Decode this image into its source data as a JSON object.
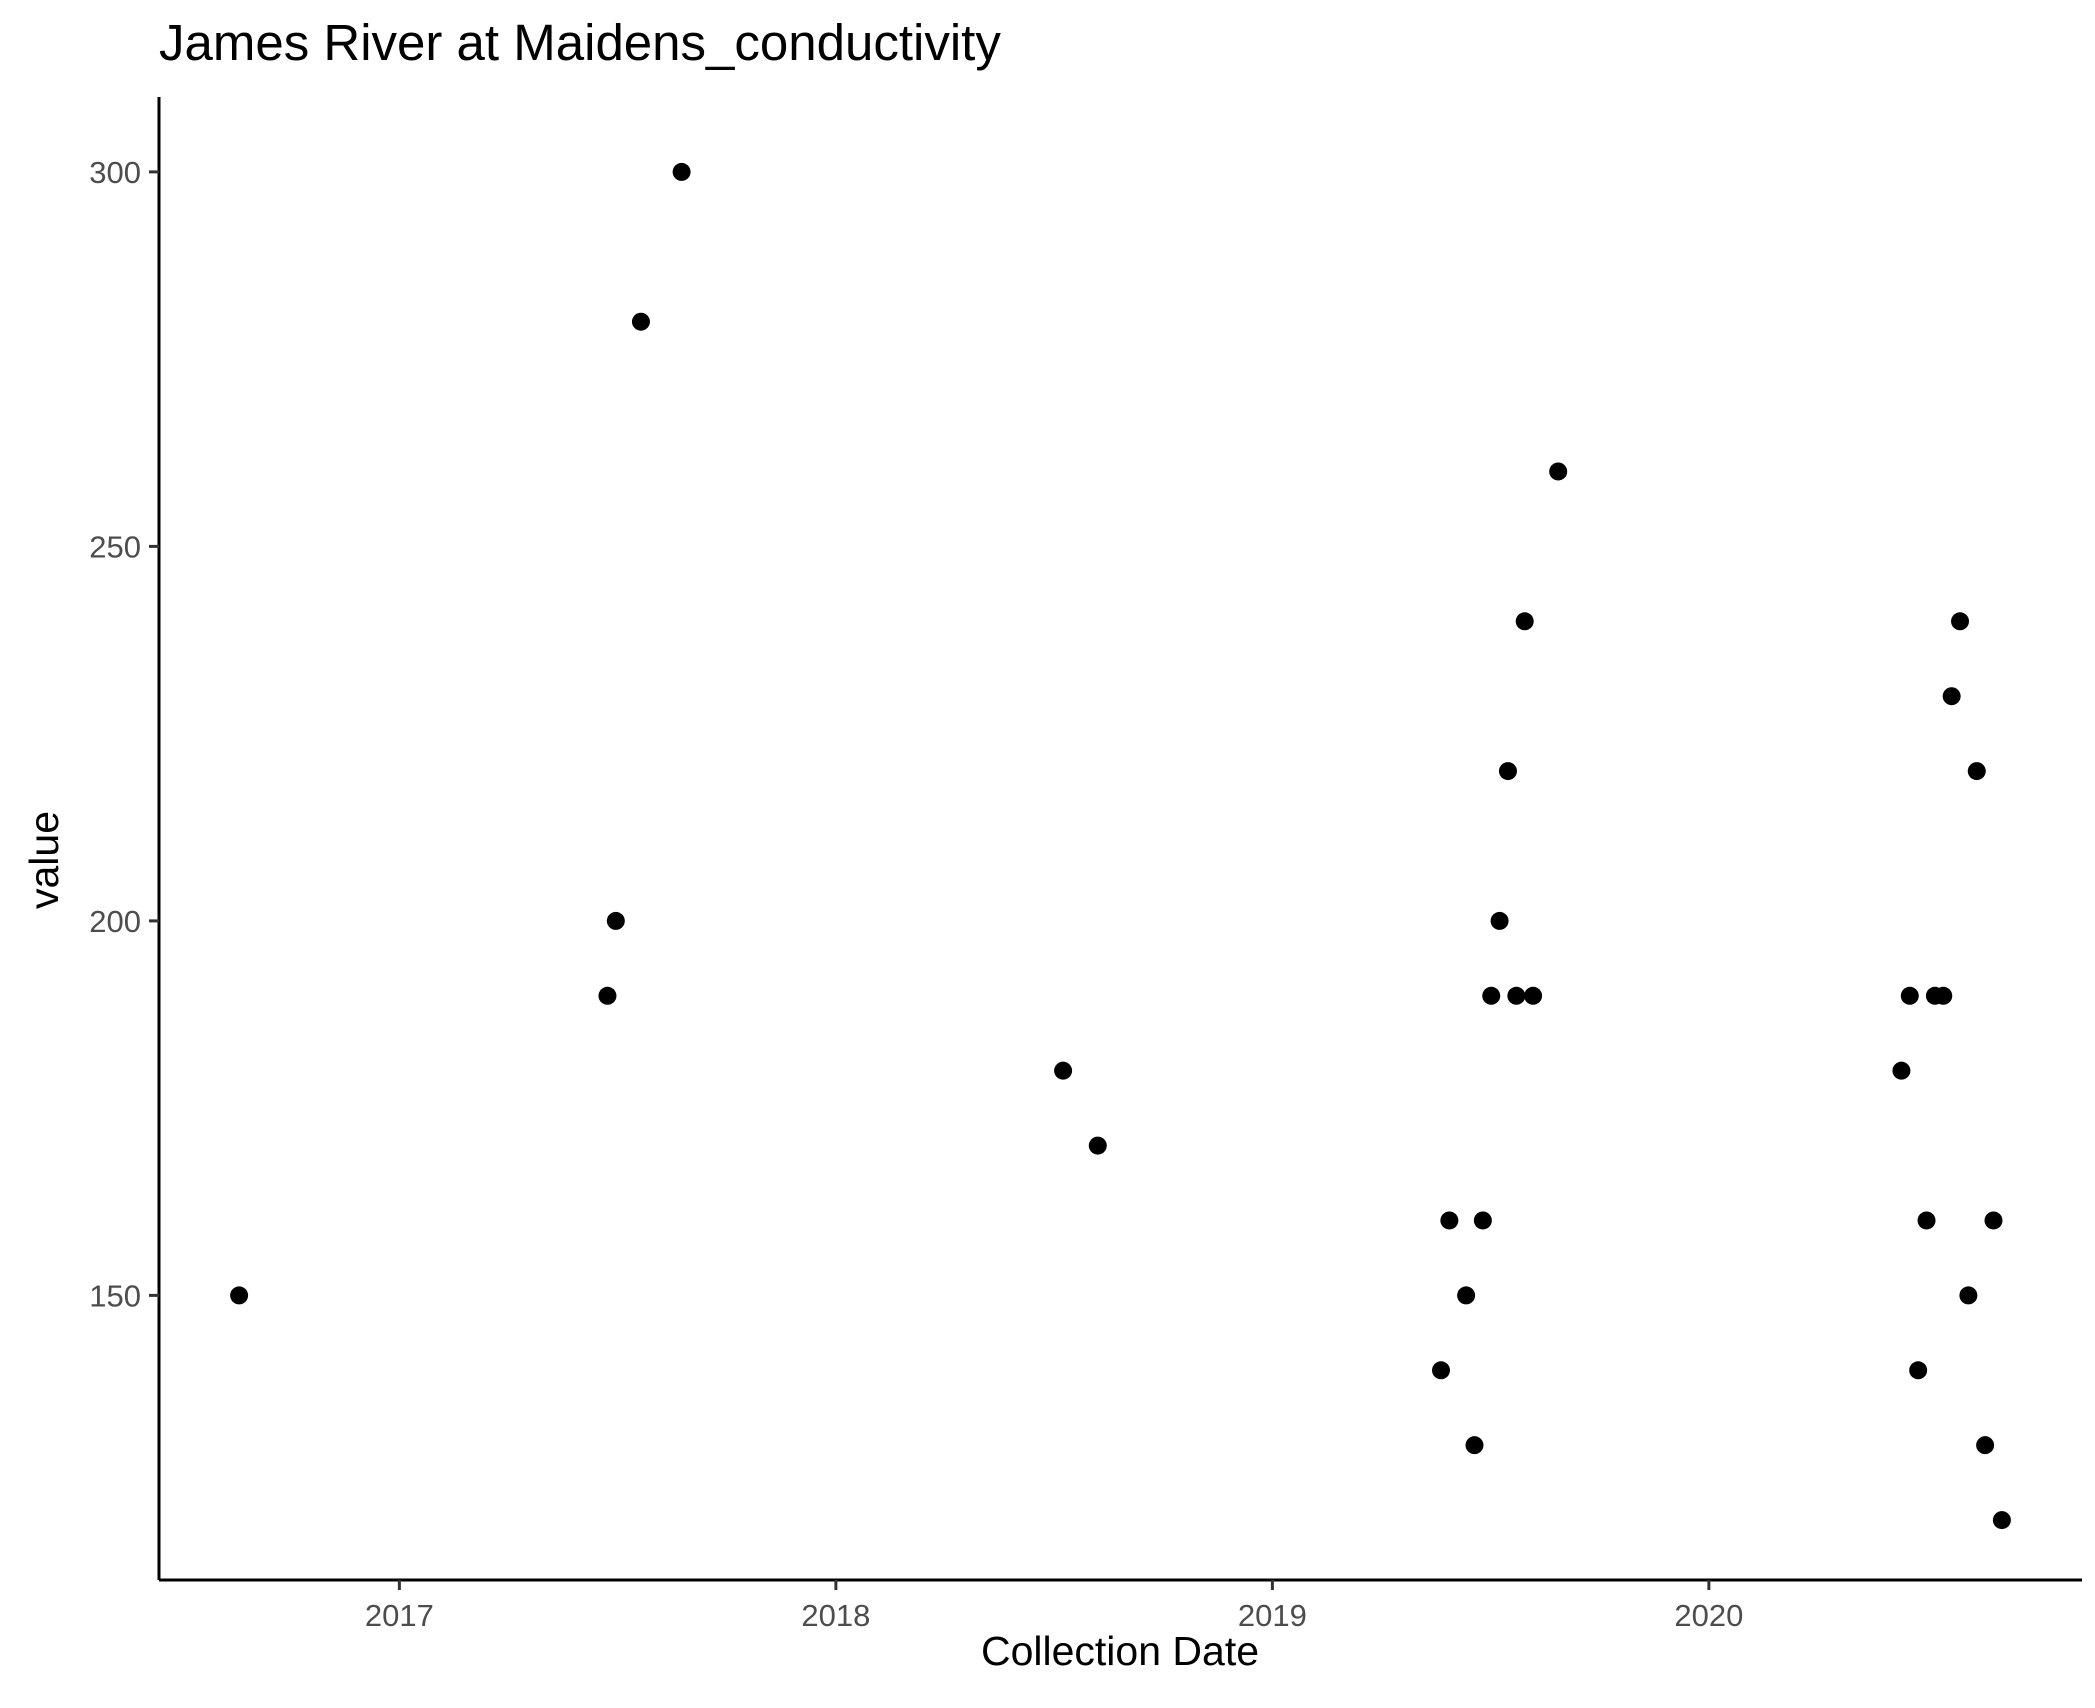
{
  "chart_data": {
    "type": "scatter",
    "title": "James River at Maidens_conductivity",
    "xlabel": "Collection Date",
    "ylabel": "value",
    "x_scale": "date",
    "xlim": [
      "2016-06-14",
      "2020-11-08"
    ],
    "ylim": [
      112,
      310
    ],
    "x_ticks": [
      {
        "date": "2017-01-01",
        "label": "2017"
      },
      {
        "date": "2018-01-01",
        "label": "2018"
      },
      {
        "date": "2019-01-01",
        "label": "2019"
      },
      {
        "date": "2020-01-01",
        "label": "2020"
      }
    ],
    "y_ticks": [
      150,
      200,
      250,
      300
    ],
    "grid": false,
    "legend": "none",
    "point_color": "#000000",
    "points": [
      {
        "x": "2016-08-20",
        "y": 150
      },
      {
        "x": "2017-06-24",
        "y": 190
      },
      {
        "x": "2017-07-01",
        "y": 200
      },
      {
        "x": "2017-07-22",
        "y": 280
      },
      {
        "x": "2017-08-25",
        "y": 300
      },
      {
        "x": "2018-07-10",
        "y": 180
      },
      {
        "x": "2018-08-08",
        "y": 170
      },
      {
        "x": "2019-05-22",
        "y": 140
      },
      {
        "x": "2019-05-29",
        "y": 160
      },
      {
        "x": "2019-06-12",
        "y": 150
      },
      {
        "x": "2019-06-19",
        "y": 130
      },
      {
        "x": "2019-06-26",
        "y": 160
      },
      {
        "x": "2019-07-03",
        "y": 190
      },
      {
        "x": "2019-07-10",
        "y": 200
      },
      {
        "x": "2019-07-17",
        "y": 220
      },
      {
        "x": "2019-07-24",
        "y": 190
      },
      {
        "x": "2019-07-31",
        "y": 240
      },
      {
        "x": "2019-08-07",
        "y": 190
      },
      {
        "x": "2019-08-28",
        "y": 260
      },
      {
        "x": "2020-06-10",
        "y": 180
      },
      {
        "x": "2020-06-17",
        "y": 190
      },
      {
        "x": "2020-06-24",
        "y": 140
      },
      {
        "x": "2020-07-01",
        "y": 160
      },
      {
        "x": "2020-07-08",
        "y": 190
      },
      {
        "x": "2020-07-15",
        "y": 190
      },
      {
        "x": "2020-07-22",
        "y": 230
      },
      {
        "x": "2020-07-29",
        "y": 240
      },
      {
        "x": "2020-08-05",
        "y": 150
      },
      {
        "x": "2020-08-12",
        "y": 220
      },
      {
        "x": "2020-08-19",
        "y": 130
      },
      {
        "x": "2020-08-26",
        "y": 160
      },
      {
        "x": "2020-09-02",
        "y": 120
      }
    ]
  }
}
